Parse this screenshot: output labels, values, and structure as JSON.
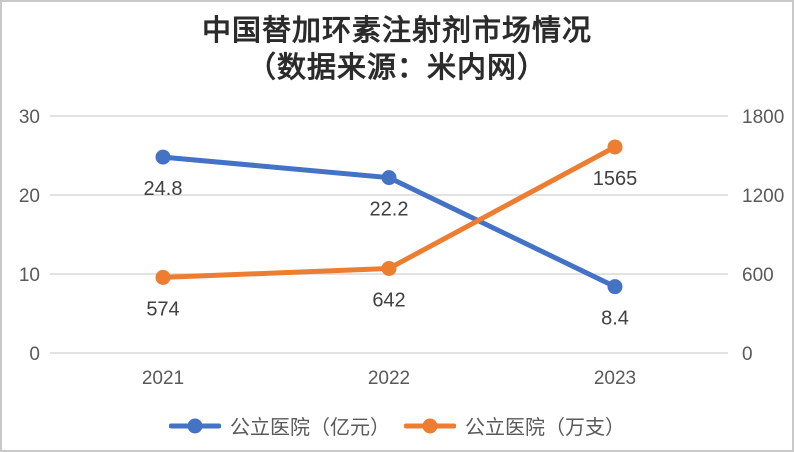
{
  "title": {
    "line1": "中国替加环素注射剂市场情况",
    "line2": "（数据来源：米内网）"
  },
  "chart_data": {
    "type": "line",
    "categories": [
      "2021",
      "2022",
      "2023"
    ],
    "series": [
      {
        "name": "公立医院（亿元）",
        "axis": "left",
        "color": "#4472C4",
        "values": [
          24.8,
          22.2,
          8.4
        ],
        "data_labels": [
          "24.8",
          "22.2",
          "8.4"
        ]
      },
      {
        "name": "公立医院（万支）",
        "axis": "right",
        "color": "#ED7D31",
        "values": [
          574,
          642,
          1565
        ],
        "data_labels": [
          "574",
          "642",
          "1565"
        ]
      }
    ],
    "left_axis": {
      "min": 0,
      "max": 30,
      "ticks": [
        0,
        10,
        20,
        30
      ]
    },
    "right_axis": {
      "min": 0,
      "max": 1800,
      "ticks": [
        0,
        600,
        1200,
        1800
      ]
    },
    "grid": true,
    "legend_position": "bottom",
    "colors": {
      "gridline": "#D9D9D9",
      "tick_text": "#595959",
      "data_label": "#404040"
    }
  }
}
